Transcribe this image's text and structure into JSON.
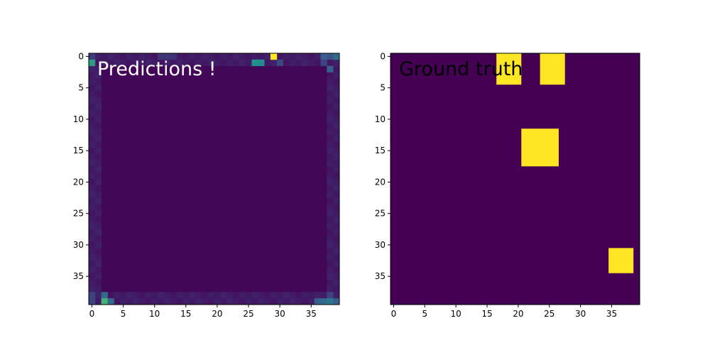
{
  "chart_data": [
    {
      "type": "heatmap",
      "title": "Predictions !",
      "colormap": "viridis",
      "grid_size": [
        40,
        40
      ],
      "value_range": [
        0,
        1
      ],
      "xticks": [
        0,
        5,
        10,
        15,
        20,
        25,
        30,
        35
      ],
      "yticks": [
        0,
        5,
        10,
        15,
        20,
        25,
        30,
        35
      ],
      "grid": false,
      "background_value": 0.02,
      "cells": [
        {
          "row": 0,
          "col": 29,
          "value": 1.0
        },
        {
          "row": 0,
          "col": 0,
          "value": 0.18
        },
        {
          "row": 0,
          "col": 11,
          "value": 0.16
        },
        {
          "row": 0,
          "col": 12,
          "value": 0.16
        },
        {
          "row": 0,
          "col": 13,
          "value": 0.15
        },
        {
          "row": 0,
          "col": 37,
          "value": 0.3
        },
        {
          "row": 0,
          "col": 38,
          "value": 0.25
        },
        {
          "row": 0,
          "col": 39,
          "value": 0.35
        },
        {
          "row": 1,
          "col": 0,
          "value": 0.55
        },
        {
          "row": 1,
          "col": 26,
          "value": 0.5
        },
        {
          "row": 1,
          "col": 27,
          "value": 0.48
        },
        {
          "row": 1,
          "col": 30,
          "value": 0.22
        },
        {
          "row": 1,
          "col": 37,
          "value": 0.2
        },
        {
          "row": 2,
          "col": 38,
          "value": 0.3
        },
        {
          "row": 38,
          "col": 2,
          "value": 0.35
        },
        {
          "row": 38,
          "col": 0,
          "value": 0.2
        },
        {
          "row": 38,
          "col": 38,
          "value": 0.2
        },
        {
          "row": 39,
          "col": 2,
          "value": 0.65
        },
        {
          "row": 39,
          "col": 3,
          "value": 0.35
        },
        {
          "row": 39,
          "col": 0,
          "value": 0.2
        },
        {
          "row": 39,
          "col": 36,
          "value": 0.3
        },
        {
          "row": 39,
          "col": 37,
          "value": 0.35
        },
        {
          "row": 39,
          "col": 38,
          "value": 0.4
        },
        {
          "row": 39,
          "col": 39,
          "value": 0.3
        }
      ]
    },
    {
      "type": "heatmap",
      "title": "Ground truth",
      "colormap": "viridis",
      "grid_size": [
        40,
        40
      ],
      "value_range": [
        0,
        1
      ],
      "xticks": [
        0,
        5,
        10,
        15,
        20,
        25,
        30,
        35
      ],
      "yticks": [
        0,
        5,
        10,
        15,
        20,
        25,
        30,
        35
      ],
      "grid": false,
      "background_value": 0,
      "blocks": [
        {
          "row_start": 0,
          "row_end": 4,
          "col_start": 17,
          "col_end": 20,
          "value": 1
        },
        {
          "row_start": 0,
          "row_end": 4,
          "col_start": 24,
          "col_end": 27,
          "value": 1
        },
        {
          "row_start": 12,
          "row_end": 17,
          "col_start": 21,
          "col_end": 26,
          "value": 1
        },
        {
          "row_start": 31,
          "row_end": 34,
          "col_start": 35,
          "col_end": 38,
          "value": 1
        }
      ]
    }
  ]
}
